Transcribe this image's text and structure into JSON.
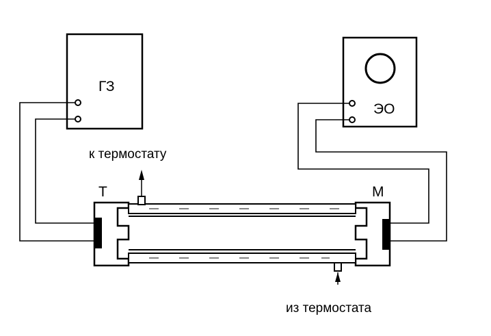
{
  "labels": {
    "generator": "ГЗ",
    "oscilloscope": "ЭО",
    "transmitter": "Т",
    "receiver": "М",
    "to_thermostat": "к термостату",
    "from_thermostat": "из термостата"
  }
}
